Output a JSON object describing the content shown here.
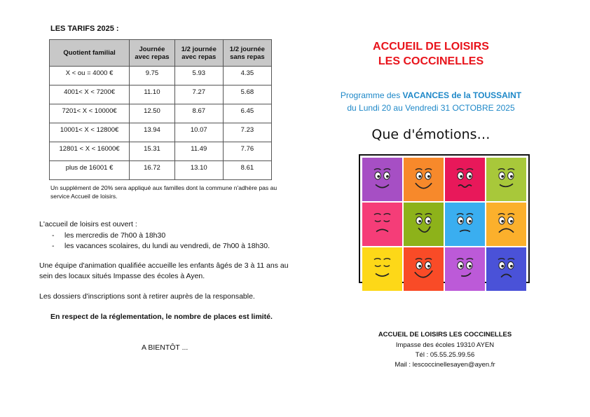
{
  "left": {
    "tarifs_title": "LES TARIFS 2025 :",
    "table": {
      "headers": [
        "Quotient familial",
        "Journée avec repas",
        "1/2 journée avec repas",
        "1/2 journée sans repas"
      ],
      "rows": [
        [
          "X < ou = 4000 €",
          "9.75",
          "5.93",
          "4.35"
        ],
        [
          "4001< X < 7200€",
          "11.10",
          "7.27",
          "5.68"
        ],
        [
          "7201< X < 10000€",
          "12.50",
          "8.67",
          "6.45"
        ],
        [
          "10001< X < 12800€",
          "13.94",
          "10.07",
          "7.23"
        ],
        [
          "12801 < X < 16000€",
          "15.31",
          "11.49",
          "7.76"
        ],
        [
          "plus de 16001 €",
          "16.72",
          "13.10",
          "8.61"
        ]
      ]
    },
    "note": "Un supplément de 20% sera appliqué aux familles dont la commune n'adhère pas au service Accueil de loisirs.",
    "open_intro": "L'accueil de loisirs est ouvert :",
    "open_items": [
      "les mercredis de 7h00 à 18h30",
      "les vacances scolaires, du lundi au vendredi, de 7h00 à 18h30."
    ],
    "team": "Une équipe d'animation qualifiée accueille les enfants âgés de 3 à 11 ans au sein des locaux situés Impasse des écoles à Ayen.",
    "dossiers": "Les dossiers d'inscriptions sont à retirer auprès de la responsable.",
    "respect": "En respect de la réglementation, le nombre de places est limité.",
    "bientot": "A BIENTÔT ..."
  },
  "right": {
    "title1": "ACCUEIL DE LOISIRS",
    "title2": "LES COCCINELLES",
    "prog_prefix": "Programme des ",
    "prog_bold": "VACANCES de la TOUSSAINT",
    "dates": "du Lundi 20 au Vendredi 31 OCTOBRE 2025",
    "theme": "Que d'émotions…",
    "tile_colors": [
      "#a64fc4",
      "#f7892b",
      "#e8185a",
      "#a8c83a",
      "#f53d78",
      "#8db21a",
      "#3aaef0",
      "#fbb02c",
      "#fdd818",
      "#f94b27",
      "#bc5ad8",
      "#4a52d8"
    ],
    "contact": {
      "name": "ACCUEIL DE LOISIRS LES COCCINELLES",
      "address": "Impasse des écoles 19310 AYEN",
      "tel": "Tél : 05.55.25.99.56",
      "mail": "Mail : lescoccinellesayen@ayen.fr"
    }
  }
}
